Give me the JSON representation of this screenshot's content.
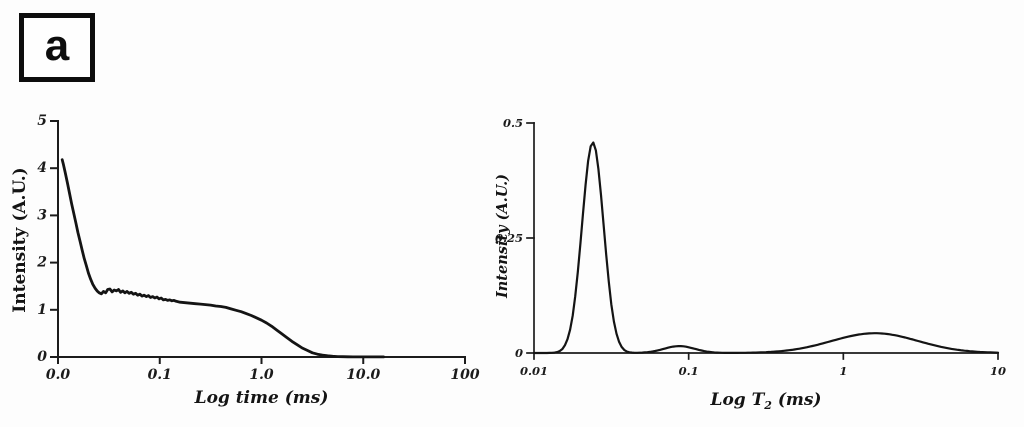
{
  "panel_label": "a",
  "colors": {
    "ink": "#1b1b1b",
    "background": "#fdfdfd"
  },
  "chart_data": [
    {
      "type": "line",
      "id": "cpmg-decay",
      "title": "",
      "xlabel": "Log time (ms)",
      "ylabel": "Intensity (A.U.)",
      "x_scale": "log",
      "y_scale": "linear",
      "xlim": [
        0.01,
        100
      ],
      "ylim": [
        0,
        5
      ],
      "grid": false,
      "legend": "none",
      "x_ticks": [
        {
          "value": 0.01,
          "label": "0.0"
        },
        {
          "value": 0.1,
          "label": "0.1"
        },
        {
          "value": 1,
          "label": "1.0"
        },
        {
          "value": 10,
          "label": "10.0"
        },
        {
          "value": 100,
          "label": "100"
        }
      ],
      "y_ticks": [
        {
          "value": 0,
          "label": "0"
        },
        {
          "value": 1,
          "label": "1"
        },
        {
          "value": 2,
          "label": "2"
        },
        {
          "value": 3,
          "label": "3"
        },
        {
          "value": 4,
          "label": "4"
        },
        {
          "value": 5,
          "label": "5"
        }
      ],
      "series": [
        {
          "name": "decay-curve",
          "points": [
            [
              0.011,
              4.18
            ],
            [
              0.0113,
              4.08
            ],
            [
              0.0118,
              3.9
            ],
            [
              0.0124,
              3.68
            ],
            [
              0.013,
              3.46
            ],
            [
              0.0136,
              3.25
            ],
            [
              0.0143,
              3.04
            ],
            [
              0.015,
              2.84
            ],
            [
              0.0157,
              2.64
            ],
            [
              0.0165,
              2.45
            ],
            [
              0.0173,
              2.26
            ],
            [
              0.0181,
              2.09
            ],
            [
              0.019,
              1.93
            ],
            [
              0.0199,
              1.78
            ],
            [
              0.0209,
              1.65
            ],
            [
              0.022,
              1.54
            ],
            [
              0.0231,
              1.46
            ],
            [
              0.0242,
              1.4
            ],
            [
              0.0254,
              1.36
            ],
            [
              0.0267,
              1.34
            ],
            [
              0.028,
              1.39
            ],
            [
              0.0294,
              1.36
            ],
            [
              0.0308,
              1.43
            ],
            [
              0.0324,
              1.44
            ],
            [
              0.034,
              1.38
            ],
            [
              0.0357,
              1.42
            ],
            [
              0.0374,
              1.4
            ],
            [
              0.0393,
              1.43
            ],
            [
              0.0412,
              1.37
            ],
            [
              0.0433,
              1.4
            ],
            [
              0.0454,
              1.36
            ],
            [
              0.0477,
              1.39
            ],
            [
              0.05,
              1.35
            ],
            [
              0.0525,
              1.37
            ],
            [
              0.0551,
              1.33
            ],
            [
              0.0579,
              1.35
            ],
            [
              0.0607,
              1.31
            ],
            [
              0.0638,
              1.33
            ],
            [
              0.0669,
              1.29
            ],
            [
              0.0702,
              1.31
            ],
            [
              0.0737,
              1.28
            ],
            [
              0.0774,
              1.3
            ],
            [
              0.0812,
              1.26
            ],
            [
              0.0852,
              1.28
            ],
            [
              0.0894,
              1.25
            ],
            [
              0.0939,
              1.27
            ],
            [
              0.0985,
              1.23
            ],
            [
              0.1034,
              1.25
            ],
            [
              0.1085,
              1.21
            ],
            [
              0.1139,
              1.22
            ],
            [
              0.1195,
              1.2
            ],
            [
              0.1254,
              1.21
            ],
            [
              0.1316,
              1.19
            ],
            [
              0.1381,
              1.2
            ],
            [
              0.145,
              1.18
            ],
            [
              0.1585,
              1.16
            ],
            [
              0.1778,
              1.15
            ],
            [
              0.1995,
              1.14
            ],
            [
              0.2239,
              1.13
            ],
            [
              0.2512,
              1.12
            ],
            [
              0.2818,
              1.11
            ],
            [
              0.3162,
              1.1
            ],
            [
              0.3548,
              1.08
            ],
            [
              0.3981,
              1.07
            ],
            [
              0.4467,
              1.05
            ],
            [
              0.5012,
              1.02
            ],
            [
              0.5623,
              0.99
            ],
            [
              0.631,
              0.96
            ],
            [
              0.7079,
              0.92
            ],
            [
              0.7943,
              0.88
            ],
            [
              0.8913,
              0.83
            ],
            [
              1.0,
              0.78
            ],
            [
              1.122,
              0.72
            ],
            [
              1.259,
              0.65
            ],
            [
              1.413,
              0.57
            ],
            [
              1.585,
              0.49
            ],
            [
              1.778,
              0.41
            ],
            [
              1.995,
              0.33
            ],
            [
              2.239,
              0.26
            ],
            [
              2.512,
              0.19
            ],
            [
              2.818,
              0.14
            ],
            [
              3.162,
              0.09
            ],
            [
              3.548,
              0.06
            ],
            [
              3.981,
              0.04
            ],
            [
              4.467,
              0.025
            ],
            [
              5.012,
              0.015
            ],
            [
              5.623,
              0.009
            ],
            [
              6.31,
              0.006
            ],
            [
              7.079,
              0.004
            ],
            [
              7.943,
              0.003
            ],
            [
              8.913,
              0.003
            ],
            [
              10.0,
              0.003
            ],
            [
              11.22,
              0.003
            ],
            [
              12.59,
              0.003
            ],
            [
              14.13,
              0.003
            ],
            [
              15.85,
              0.003
            ]
          ]
        }
      ]
    },
    {
      "type": "line",
      "id": "t2-distribution",
      "title": "",
      "xlabel": {
        "pre": "Log T",
        "sub": "2",
        "post": " (ms)"
      },
      "ylabel": "Intensity (A.U.)",
      "x_scale": "log",
      "y_scale": "linear",
      "xlim": [
        0.01,
        10
      ],
      "ylim": [
        0,
        0.5
      ],
      "grid": false,
      "legend": "none",
      "x_ticks": [
        {
          "value": 0.01,
          "label": "0.01"
        },
        {
          "value": 0.1,
          "label": "0.1"
        },
        {
          "value": 1,
          "label": "1"
        },
        {
          "value": 10,
          "label": "10"
        }
      ],
      "y_ticks": [
        {
          "value": 0,
          "label": "0"
        },
        {
          "value": 0.25,
          "label": "0.25"
        },
        {
          "value": 0.5,
          "label": "0.5"
        }
      ],
      "series": [
        {
          "name": "t2-distribution-curve",
          "peaks": [
            {
              "center_ms": 0.024,
              "height": 0.458,
              "sigma_decades": 0.07
            },
            {
              "center_ms": 0.087,
              "height": 0.015,
              "sigma_decades": 0.1
            },
            {
              "center_ms": 1.6,
              "height": 0.043,
              "sigma_decades": 0.28
            }
          ]
        }
      ]
    }
  ]
}
